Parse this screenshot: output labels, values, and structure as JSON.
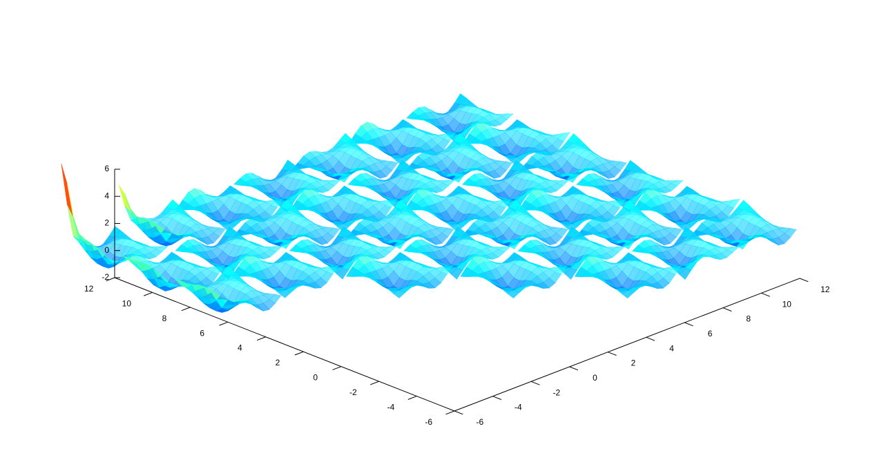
{
  "chart_data": {
    "type": "surface",
    "title": "",
    "xlabel": "",
    "ylabel": "",
    "zlabel": "",
    "xlim": [
      -6,
      12
    ],
    "ylim": [
      -6,
      12
    ],
    "zlim": [
      -2,
      6
    ],
    "grid": false,
    "legend": "none",
    "colormap": "jet",
    "colors": {
      "low": "#0000ff",
      "midlow": "#00bfff",
      "mid": "#7fff7f",
      "high": "#ffff00",
      "max": "#8b0000",
      "axis": "#000000",
      "background": "#ffffff"
    },
    "x_axis": {
      "ticks": [
        -6,
        -4,
        -2,
        0,
        2,
        4,
        6,
        8,
        10,
        12
      ]
    },
    "y_axis": {
      "ticks": [
        -6,
        -4,
        -2,
        0,
        2,
        4,
        6,
        8,
        10,
        12
      ]
    },
    "z_axis": {
      "ticks": [
        -2,
        0,
        2,
        4,
        6
      ]
    },
    "tiles": {
      "centers": [
        -3,
        0,
        3,
        6,
        9,
        12
      ],
      "half_width": 1.4,
      "peaks": [
        {
          "x": -6,
          "y": 12,
          "z": 5.8
        },
        {
          "x": -3,
          "y": 12,
          "z": 3.2
        },
        {
          "x": -6,
          "y": 9,
          "z": 1.0
        },
        {
          "x": -6,
          "y": 6,
          "z": 1.2
        }
      ]
    }
  }
}
